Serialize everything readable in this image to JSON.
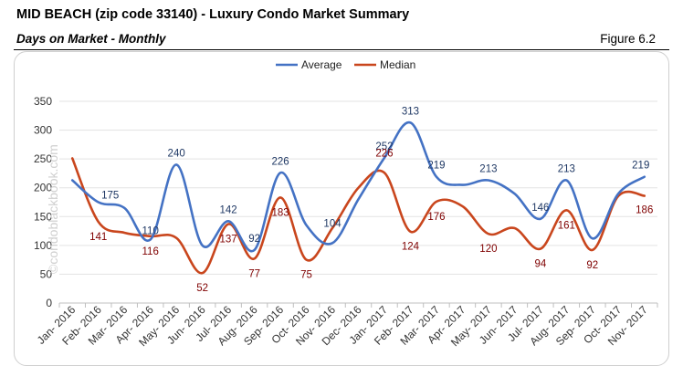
{
  "header": {
    "title": "MID BEACH (zip code 33140) - Luxury Condo Market Summary",
    "subtitle": "Days on Market - Monthly",
    "figure_label": "Figure 6.2"
  },
  "watermark": "©condoblackbook.com",
  "chart_data": {
    "type": "line",
    "title": "",
    "xlabel": "",
    "ylabel": "",
    "ylim": [
      0,
      350
    ],
    "yticks": [
      0,
      50,
      100,
      150,
      200,
      250,
      300,
      350
    ],
    "grid": true,
    "legend_position": "top-center",
    "categories": [
      "Jan- 2016",
      "Feb- 2016",
      "Mar- 2016",
      "Apr- 2016",
      "May- 2016",
      "Jun- 2016",
      "Jul- 2016",
      "Aug- 2016",
      "Sep- 2016",
      "Oct- 2016",
      "Nov- 2016",
      "Dec- 2016",
      "Jan- 2017",
      "Feb- 2017",
      "Mar- 2017",
      "Apr- 2017",
      "May- 2017",
      "Jun- 2017",
      "Jul- 2017",
      "Aug- 2017",
      "Sep- 2017",
      "Oct- 2017",
      "Nov- 2017"
    ],
    "series": [
      {
        "name": "Average",
        "color": "#4472c4",
        "label_color": "#1f3864",
        "values": [
          213,
          175,
          165,
          110,
          240,
          100,
          142,
          92,
          226,
          135,
          104,
          180,
          252,
          313,
          219,
          205,
          213,
          190,
          146,
          213,
          112,
          190,
          219
        ],
        "labels": [
          null,
          "175",
          null,
          "110",
          "240",
          null,
          "142",
          "92",
          "226",
          null,
          "104",
          null,
          "252",
          "313",
          "219",
          null,
          "213",
          null,
          "146",
          "213",
          null,
          null,
          "219"
        ]
      },
      {
        "name": "Median",
        "color": "#c9461d",
        "label_color": "#7f0000",
        "values": [
          251,
          141,
          122,
          116,
          113,
          52,
          137,
          77,
          183,
          75,
          130,
          200,
          226,
          124,
          176,
          168,
          120,
          130,
          94,
          161,
          92,
          186,
          186
        ],
        "labels": [
          null,
          "141",
          null,
          "116",
          null,
          "52",
          "137",
          "77",
          "183",
          "75",
          null,
          null,
          "226",
          "124",
          "176",
          null,
          "120",
          null,
          "94",
          "161",
          "92",
          null,
          "186"
        ]
      }
    ]
  }
}
